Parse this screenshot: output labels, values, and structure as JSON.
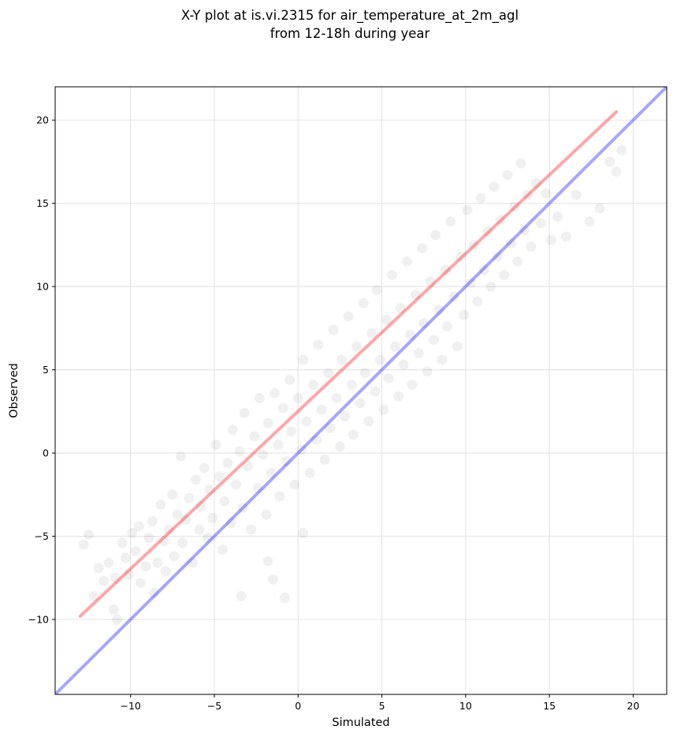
{
  "chart_data": {
    "type": "scatter",
    "title": [
      "X-Y plot at is.vi.2315 for air_temperature_at_2m_agl",
      "from 12-18h during year"
    ],
    "xlabel": "Simulated",
    "ylabel": "Observed",
    "xlim": [
      -14.5,
      22.0
    ],
    "ylim": [
      -14.5,
      22.0
    ],
    "grid": true,
    "xticks": [
      -10,
      -5,
      0,
      5,
      10,
      15,
      20
    ],
    "yticks": [
      -10,
      -5,
      0,
      5,
      10,
      15,
      20
    ],
    "xtick_labels": [
      "−10",
      "−5",
      "0",
      "5",
      "10",
      "15",
      "20"
    ],
    "ytick_labels": [
      "−10",
      "−5",
      "0",
      "5",
      "10",
      "15",
      "20"
    ],
    "point_color": "#000000",
    "point_alpha": 0.06,
    "lines": [
      {
        "role": "one-to-one",
        "color": "#0000ff",
        "x": [
          -14.5,
          22.0
        ],
        "y": [
          -14.5,
          22.0
        ]
      },
      {
        "role": "regression-fit",
        "color": "#ff0000",
        "x": [
          -13.0,
          19.0
        ],
        "y": [
          -9.8,
          20.5
        ]
      }
    ],
    "points": [
      [
        -12.8,
        -5.5
      ],
      [
        -12.5,
        -4.9
      ],
      [
        -12.2,
        -8.6
      ],
      [
        -11.9,
        -6.9
      ],
      [
        -11.6,
        -7.7
      ],
      [
        -11.3,
        -6.6
      ],
      [
        -11.0,
        -9.4
      ],
      [
        -10.8,
        -10.0
      ],
      [
        -10.9,
        -7.5
      ],
      [
        -10.5,
        -5.4
      ],
      [
        -10.3,
        -6.3
      ],
      [
        -10.1,
        -7.3
      ],
      [
        -9.9,
        -4.8
      ],
      [
        -9.7,
        -5.9
      ],
      [
        -9.5,
        -4.4
      ],
      [
        -9.4,
        -7.8
      ],
      [
        -9.1,
        -6.8
      ],
      [
        -8.9,
        -5.1
      ],
      [
        -8.7,
        -4.1
      ],
      [
        -8.6,
        -8.4
      ],
      [
        -8.4,
        -6.6
      ],
      [
        -8.2,
        -3.1
      ],
      [
        -8.0,
        -5.3
      ],
      [
        -7.9,
        -7.1
      ],
      [
        -7.7,
        -4.6
      ],
      [
        -7.5,
        -2.5
      ],
      [
        -7.4,
        -6.2
      ],
      [
        -7.2,
        -3.7
      ],
      [
        -7.0,
        -0.2
      ],
      [
        -6.9,
        -5.4
      ],
      [
        -6.7,
        -4.0
      ],
      [
        -6.5,
        -2.7
      ],
      [
        -6.3,
        -6.6
      ],
      [
        -6.1,
        -1.6
      ],
      [
        -5.9,
        -4.6
      ],
      [
        -5.8,
        -3.2
      ],
      [
        -5.6,
        -0.9
      ],
      [
        -5.4,
        -5.1
      ],
      [
        -5.3,
        -2.2
      ],
      [
        -5.1,
        -3.9
      ],
      [
        -4.9,
        0.5
      ],
      [
        -4.7,
        -1.4
      ],
      [
        -4.5,
        -5.8
      ],
      [
        -4.4,
        -2.9
      ],
      [
        -4.2,
        -0.6
      ],
      [
        -4.0,
        -4.2
      ],
      [
        -3.9,
        1.4
      ],
      [
        -3.7,
        -1.9
      ],
      [
        -3.5,
        0.1
      ],
      [
        -3.3,
        -3.3
      ],
      [
        -3.2,
        2.4
      ],
      [
        -3.0,
        -0.8
      ],
      [
        -2.8,
        -4.6
      ],
      [
        -2.6,
        1.0
      ],
      [
        -2.4,
        -2.1
      ],
      [
        -2.3,
        3.3
      ],
      [
        -2.1,
        -0.1
      ],
      [
        -1.9,
        -3.7
      ],
      [
        -1.8,
        1.8
      ],
      [
        -1.6,
        -1.2
      ],
      [
        -1.4,
        3.6
      ],
      [
        -1.2,
        0.5
      ],
      [
        -1.1,
        -2.6
      ],
      [
        -0.9,
        2.7
      ],
      [
        -0.7,
        -0.5
      ],
      [
        -0.5,
        4.4
      ],
      [
        -0.4,
        1.3
      ],
      [
        -0.2,
        -1.9
      ],
      [
        0.0,
        3.3
      ],
      [
        0.2,
        0.2
      ],
      [
        0.3,
        5.6
      ],
      [
        0.5,
        1.9
      ],
      [
        0.7,
        -1.2
      ],
      [
        0.9,
        4.1
      ],
      [
        1.1,
        0.8
      ],
      [
        1.2,
        6.5
      ],
      [
        1.4,
        2.6
      ],
      [
        1.6,
        -0.4
      ],
      [
        1.8,
        4.8
      ],
      [
        1.9,
        1.5
      ],
      [
        2.1,
        7.4
      ],
      [
        2.3,
        3.3
      ],
      [
        2.5,
        0.4
      ],
      [
        2.6,
        5.6
      ],
      [
        2.8,
        2.2
      ],
      [
        3.0,
        8.2
      ],
      [
        3.2,
        4.1
      ],
      [
        3.3,
        1.1
      ],
      [
        3.5,
        6.4
      ],
      [
        3.7,
        3.0
      ],
      [
        3.9,
        9.0
      ],
      [
        4.0,
        4.8
      ],
      [
        4.2,
        1.9
      ],
      [
        4.4,
        7.2
      ],
      [
        4.6,
        3.7
      ],
      [
        4.7,
        9.8
      ],
      [
        4.9,
        5.6
      ],
      [
        5.1,
        2.6
      ],
      [
        5.3,
        8.0
      ],
      [
        5.4,
        4.5
      ],
      [
        5.6,
        10.7
      ],
      [
        5.8,
        6.4
      ],
      [
        6.0,
        3.4
      ],
      [
        6.1,
        8.7
      ],
      [
        6.3,
        5.3
      ],
      [
        6.5,
        11.5
      ],
      [
        6.7,
        7.1
      ],
      [
        6.8,
        4.1
      ],
      [
        7.0,
        9.5
      ],
      [
        7.2,
        6.0
      ],
      [
        7.4,
        12.3
      ],
      [
        7.5,
        7.8
      ],
      [
        7.7,
        4.9
      ],
      [
        7.9,
        10.3
      ],
      [
        8.1,
        6.8
      ],
      [
        8.2,
        13.1
      ],
      [
        8.4,
        8.6
      ],
      [
        8.6,
        5.6
      ],
      [
        8.8,
        11.0
      ],
      [
        8.9,
        7.6
      ],
      [
        9.1,
        13.9
      ],
      [
        9.3,
        9.4
      ],
      [
        9.5,
        6.4
      ],
      [
        9.7,
        11.8
      ],
      [
        9.9,
        8.3
      ],
      [
        10.1,
        14.6
      ],
      [
        10.3,
        10.2
      ],
      [
        10.5,
        12.5
      ],
      [
        10.7,
        9.1
      ],
      [
        10.9,
        15.3
      ],
      [
        11.1,
        11.0
      ],
      [
        11.3,
        13.3
      ],
      [
        11.5,
        10.0
      ],
      [
        11.7,
        16.0
      ],
      [
        11.9,
        11.8
      ],
      [
        12.1,
        14.0
      ],
      [
        12.3,
        10.7
      ],
      [
        12.5,
        16.7
      ],
      [
        12.7,
        12.6
      ],
      [
        12.9,
        14.8
      ],
      [
        13.1,
        11.5
      ],
      [
        13.3,
        17.4
      ],
      [
        13.5,
        13.4
      ],
      [
        13.7,
        15.5
      ],
      [
        13.9,
        12.4
      ],
      [
        14.2,
        16.2
      ],
      [
        14.5,
        13.8
      ],
      [
        14.8,
        15.6
      ],
      [
        15.1,
        12.8
      ],
      [
        15.5,
        14.2
      ],
      [
        16.0,
        13.0
      ],
      [
        16.6,
        15.5
      ],
      [
        17.4,
        13.9
      ],
      [
        18.0,
        14.7
      ],
      [
        18.6,
        17.5
      ],
      [
        19.0,
        16.9
      ],
      [
        19.3,
        18.2
      ],
      [
        -0.8,
        -8.7
      ],
      [
        -1.5,
        -7.6
      ],
      [
        -3.4,
        -8.6
      ],
      [
        -1.8,
        -6.5
      ],
      [
        0.3,
        -4.8
      ]
    ]
  }
}
